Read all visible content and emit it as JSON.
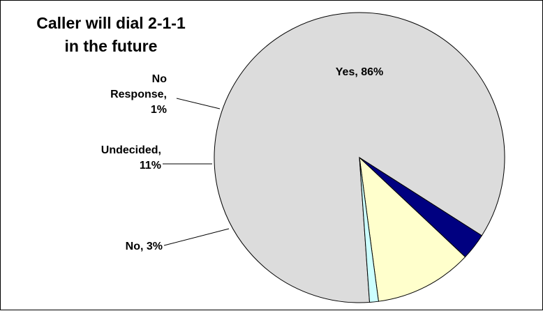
{
  "chart_data": {
    "type": "pie",
    "title_lines": [
      "Caller will dial 2-1-1",
      "in the future"
    ],
    "slices": [
      {
        "category": "Yes",
        "value": 86,
        "color": "#DCDCDC",
        "label_lines": [
          "Yes, 86%"
        ]
      },
      {
        "category": "No",
        "value": 3,
        "color": "#000080",
        "label_lines": [
          "No, 3%"
        ]
      },
      {
        "category": "Undecided",
        "value": 11,
        "color": "#FFFFCC",
        "label_lines": [
          "Undecided,",
          "11%"
        ]
      },
      {
        "category": "No Response",
        "value": 1,
        "color": "#CCFFFF",
        "label_lines": [
          "No",
          "Response,",
          "1%"
        ]
      }
    ],
    "legend": "none",
    "labels": "outside with leader lines"
  }
}
